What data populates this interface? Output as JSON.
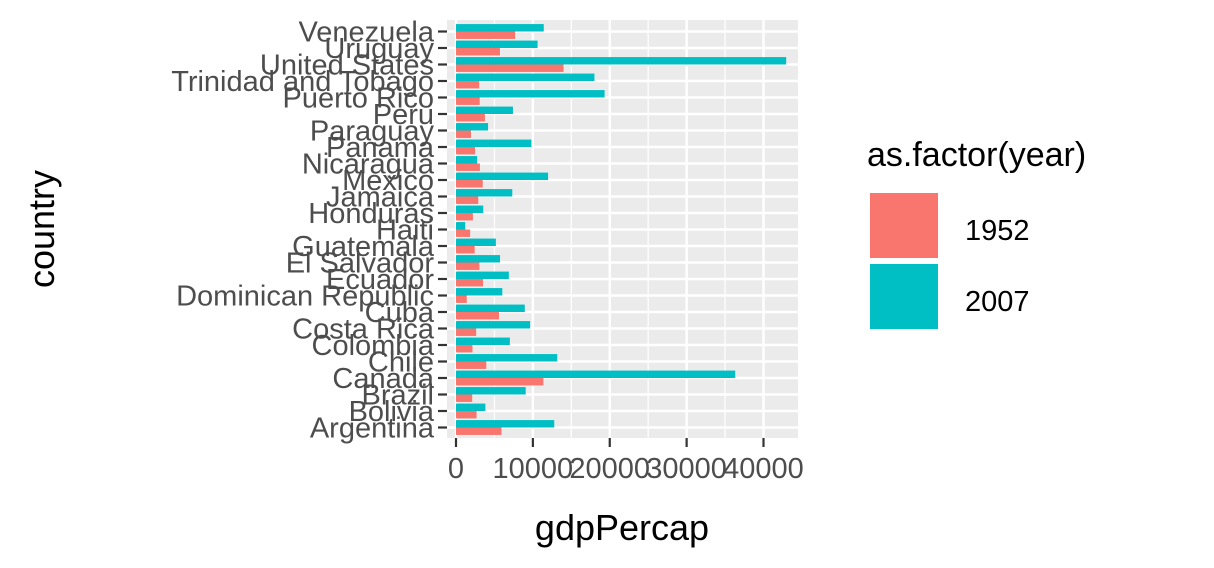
{
  "chart_data": {
    "type": "bar",
    "orientation": "horizontal",
    "xlabel": "gdpPercap",
    "ylabel": "country",
    "xlim": [
      0,
      44800
    ],
    "x_ticks": [
      0,
      10000,
      20000,
      30000,
      40000
    ],
    "x_tick_labels": [
      "0",
      "10000",
      "20000",
      "30000",
      "40000"
    ],
    "grid": true,
    "legend": {
      "title": "as.factor(year)",
      "position": "right"
    },
    "categories": [
      "Argentina",
      "Bolivia",
      "Brazil",
      "Canada",
      "Chile",
      "Colombia",
      "Costa Rica",
      "Cuba",
      "Dominican Republic",
      "Ecuador",
      "El Salvador",
      "Guatemala",
      "Haiti",
      "Honduras",
      "Jamaica",
      "Mexico",
      "Nicaragua",
      "Panama",
      "Paraguay",
      "Peru",
      "Puerto Rico",
      "Trinidad and Tobago",
      "United States",
      "Uruguay",
      "Venezuela"
    ],
    "series": [
      {
        "name": "1952",
        "color": "#F8766D",
        "values": [
          5911,
          2677,
          2109,
          11367,
          3940,
          2144,
          2627,
          5587,
          1398,
          3522,
          3048,
          2428,
          1840,
          2195,
          2899,
          3478,
          3112,
          2480,
          1952,
          3759,
          3082,
          3023,
          13990,
          5717,
          7690
        ]
      },
      {
        "name": "2007",
        "color": "#00BFC4",
        "values": [
          12779,
          3822,
          9066,
          36319,
          13172,
          7007,
          9645,
          8948,
          6025,
          6873,
          5728,
          5186,
          1202,
          3548,
          7321,
          11978,
          2749,
          9809,
          4173,
          7409,
          19329,
          18009,
          42952,
          10611,
          11416
        ]
      }
    ]
  }
}
